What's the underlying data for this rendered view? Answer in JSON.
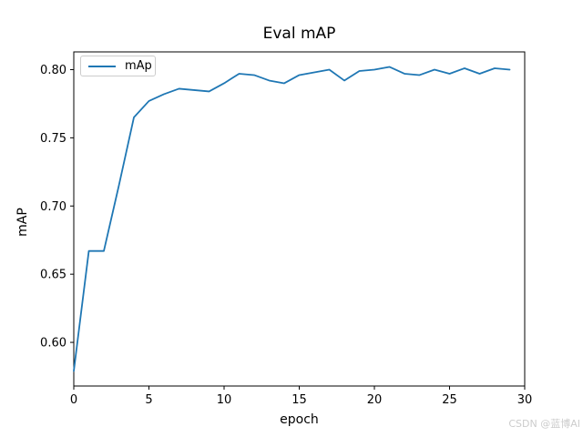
{
  "watermark": "CSDN @蓝博AI",
  "chart_data": {
    "type": "line",
    "title": "Eval mAP",
    "xlabel": "epoch",
    "ylabel": "mAP",
    "legend_position": "upper left",
    "grid": false,
    "xlim": [
      0,
      30
    ],
    "ylim": [
      0.568,
      0.813
    ],
    "xticks": [
      0,
      5,
      10,
      15,
      20,
      25,
      30
    ],
    "xtick_labels": [
      "0",
      "5",
      "10",
      "15",
      "20",
      "25",
      "30"
    ],
    "yticks": [
      0.6,
      0.65,
      0.7,
      0.75,
      0.8
    ],
    "ytick_labels": [
      "0.60",
      "0.65",
      "0.70",
      "0.75",
      "0.80"
    ],
    "series": [
      {
        "name": "mAp",
        "color": "#1f77b4",
        "x": [
          0,
          1,
          2,
          3,
          4,
          5,
          6,
          7,
          8,
          9,
          10,
          11,
          12,
          13,
          14,
          15,
          16,
          17,
          18,
          19,
          20,
          21,
          22,
          23,
          24,
          25,
          26,
          27,
          28,
          29
        ],
        "values": [
          0.579,
          0.667,
          0.667,
          0.715,
          0.765,
          0.777,
          0.782,
          0.786,
          0.785,
          0.784,
          0.79,
          0.797,
          0.796,
          0.792,
          0.79,
          0.796,
          0.798,
          0.8,
          0.792,
          0.799,
          0.8,
          0.802,
          0.797,
          0.796,
          0.8,
          0.797,
          0.801,
          0.797,
          0.801,
          0.8
        ]
      }
    ]
  }
}
